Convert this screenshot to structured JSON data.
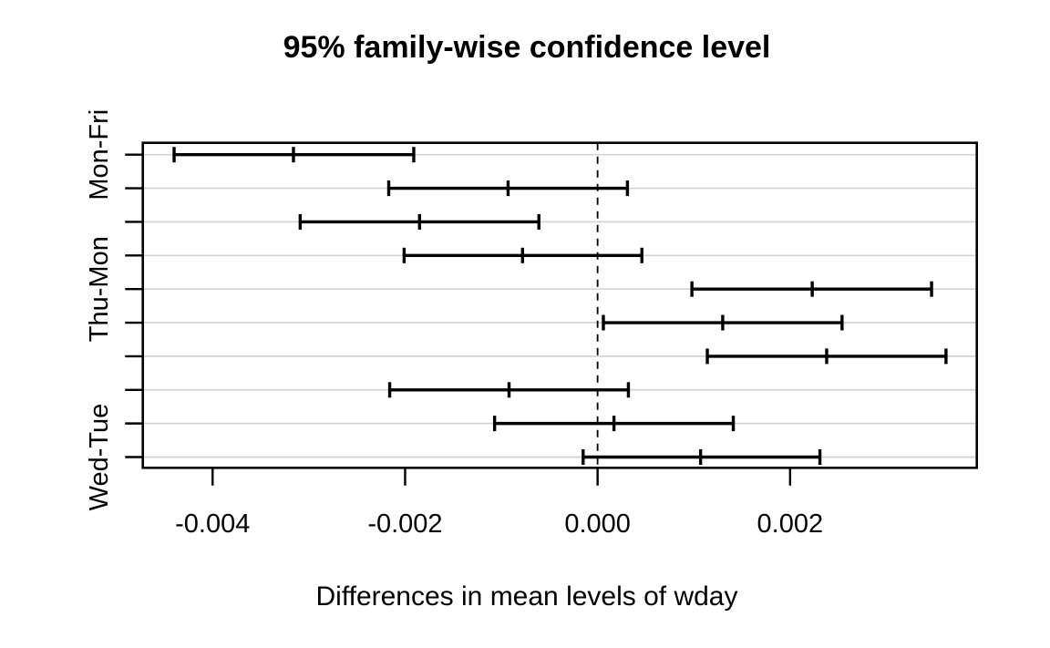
{
  "title": "95% family-wise confidence level",
  "xlabel": "Differences in mean levels of wday",
  "chart_data": {
    "type": "interval",
    "title": "95% family-wise confidence level",
    "xlabel": "Differences in mean levels of wday",
    "description": "Tukey-style plot of pairwise differences with 95% family-wise confidence intervals; dashed reference line at 0",
    "xlim": [
      -0.004725,
      0.00394
    ],
    "x_ticks": [
      {
        "value": -0.004,
        "label": "-0.004"
      },
      {
        "value": -0.002,
        "label": "-0.002"
      },
      {
        "value": 0.0,
        "label": "0.000"
      },
      {
        "value": 0.002,
        "label": "0.002"
      }
    ],
    "y_axis_labels": [
      {
        "row": 1,
        "label": "Mon-Fri"
      },
      {
        "row": 5,
        "label": "Thu-Mon"
      },
      {
        "row": 10,
        "label": "Wed-Tue"
      }
    ],
    "comparisons": [
      {
        "row": 1,
        "lwr": -0.0044,
        "diff": -0.00316,
        "upr": -0.00191
      },
      {
        "row": 2,
        "lwr": -0.00217,
        "diff": -0.00093,
        "upr": 0.00031
      },
      {
        "row": 3,
        "lwr": -0.00309,
        "diff": -0.00185,
        "upr": -0.00061
      },
      {
        "row": 4,
        "lwr": -0.00201,
        "diff": -0.00078,
        "upr": 0.00046
      },
      {
        "row": 5,
        "lwr": 0.00098,
        "diff": 0.00223,
        "upr": 0.00347
      },
      {
        "row": 6,
        "lwr": 6e-05,
        "diff": 0.0013,
        "upr": 0.00254
      },
      {
        "row": 7,
        "lwr": 0.00114,
        "diff": 0.00238,
        "upr": 0.00362
      },
      {
        "row": 8,
        "lwr": -0.00216,
        "diff": -0.00092,
        "upr": 0.00032
      },
      {
        "row": 9,
        "lwr": -0.00107,
        "diff": 0.00017,
        "upr": 0.00141
      },
      {
        "row": 10,
        "lwr": -0.00015,
        "diff": 0.00107,
        "upr": 0.00231
      }
    ],
    "zero_line": 0,
    "grid": true,
    "legend": "none",
    "colors": {
      "interval": "#000000",
      "box": "#000000",
      "grid": "#d3d3d3",
      "zero_line": "#000000",
      "text": "#000000",
      "background": "#ffffff"
    }
  }
}
